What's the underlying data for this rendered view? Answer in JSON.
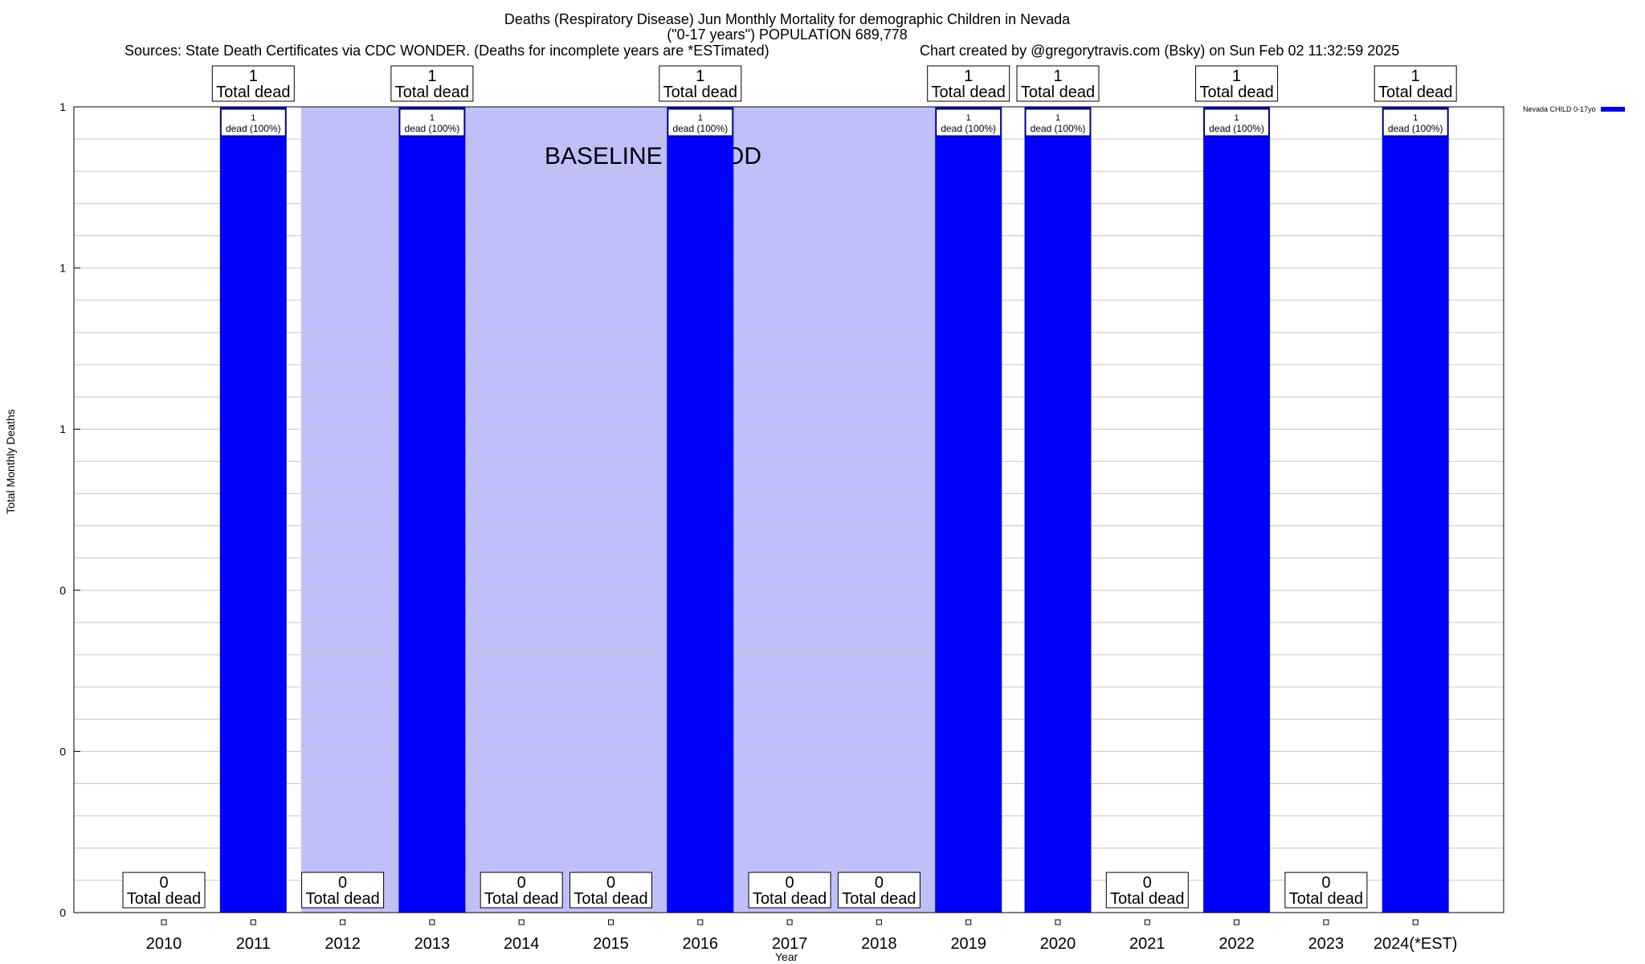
{
  "header": {
    "title_line1": "Deaths (Respiratory Disease) Jun Monthly Mortality for demographic Children in Nevada",
    "title_line2": "(\"0-17 years\") POPULATION 689,778",
    "sources": "Sources: State Death Certificates via CDC WONDER. (Deaths for incomplete years are *ESTimated)",
    "credit": "Chart created by @gregorytravis.com (Bsky) on Sun Feb 02 11:32:59 2025"
  },
  "legend": {
    "label": "Nevada CHILD 0-17yo",
    "color": "#0000ff"
  },
  "chart_data": {
    "type": "bar",
    "title": "Deaths (Respiratory Disease) Jun Monthly Mortality for demographic Children in Nevada",
    "xlabel": "Year",
    "ylabel": "Total Monthly Deaths",
    "categories": [
      "2010",
      "2011",
      "2012",
      "2013",
      "2014",
      "2015",
      "2016",
      "2017",
      "2018",
      "2019",
      "2020",
      "2021",
      "2022",
      "2023",
      "2024(*EST)"
    ],
    "series": [
      {
        "name": "Nevada CHILD 0-17yo",
        "values": [
          0,
          1,
          0,
          1,
          0,
          0,
          1,
          0,
          0,
          1,
          1,
          0,
          1,
          0,
          1
        ]
      }
    ],
    "ylim": [
      0,
      1
    ],
    "y_tick_labels": [
      "0",
      "0",
      "0",
      "1",
      "1",
      "1"
    ],
    "total_label_text": "Total dead",
    "inner_label_text": "dead (100%)",
    "baseline_label": "BASELINE PERIOD",
    "baseline_range": [
      "2012",
      "2019"
    ],
    "bar_color": "#0000ff",
    "baseline_color": "#bfbffa",
    "grid": true
  }
}
